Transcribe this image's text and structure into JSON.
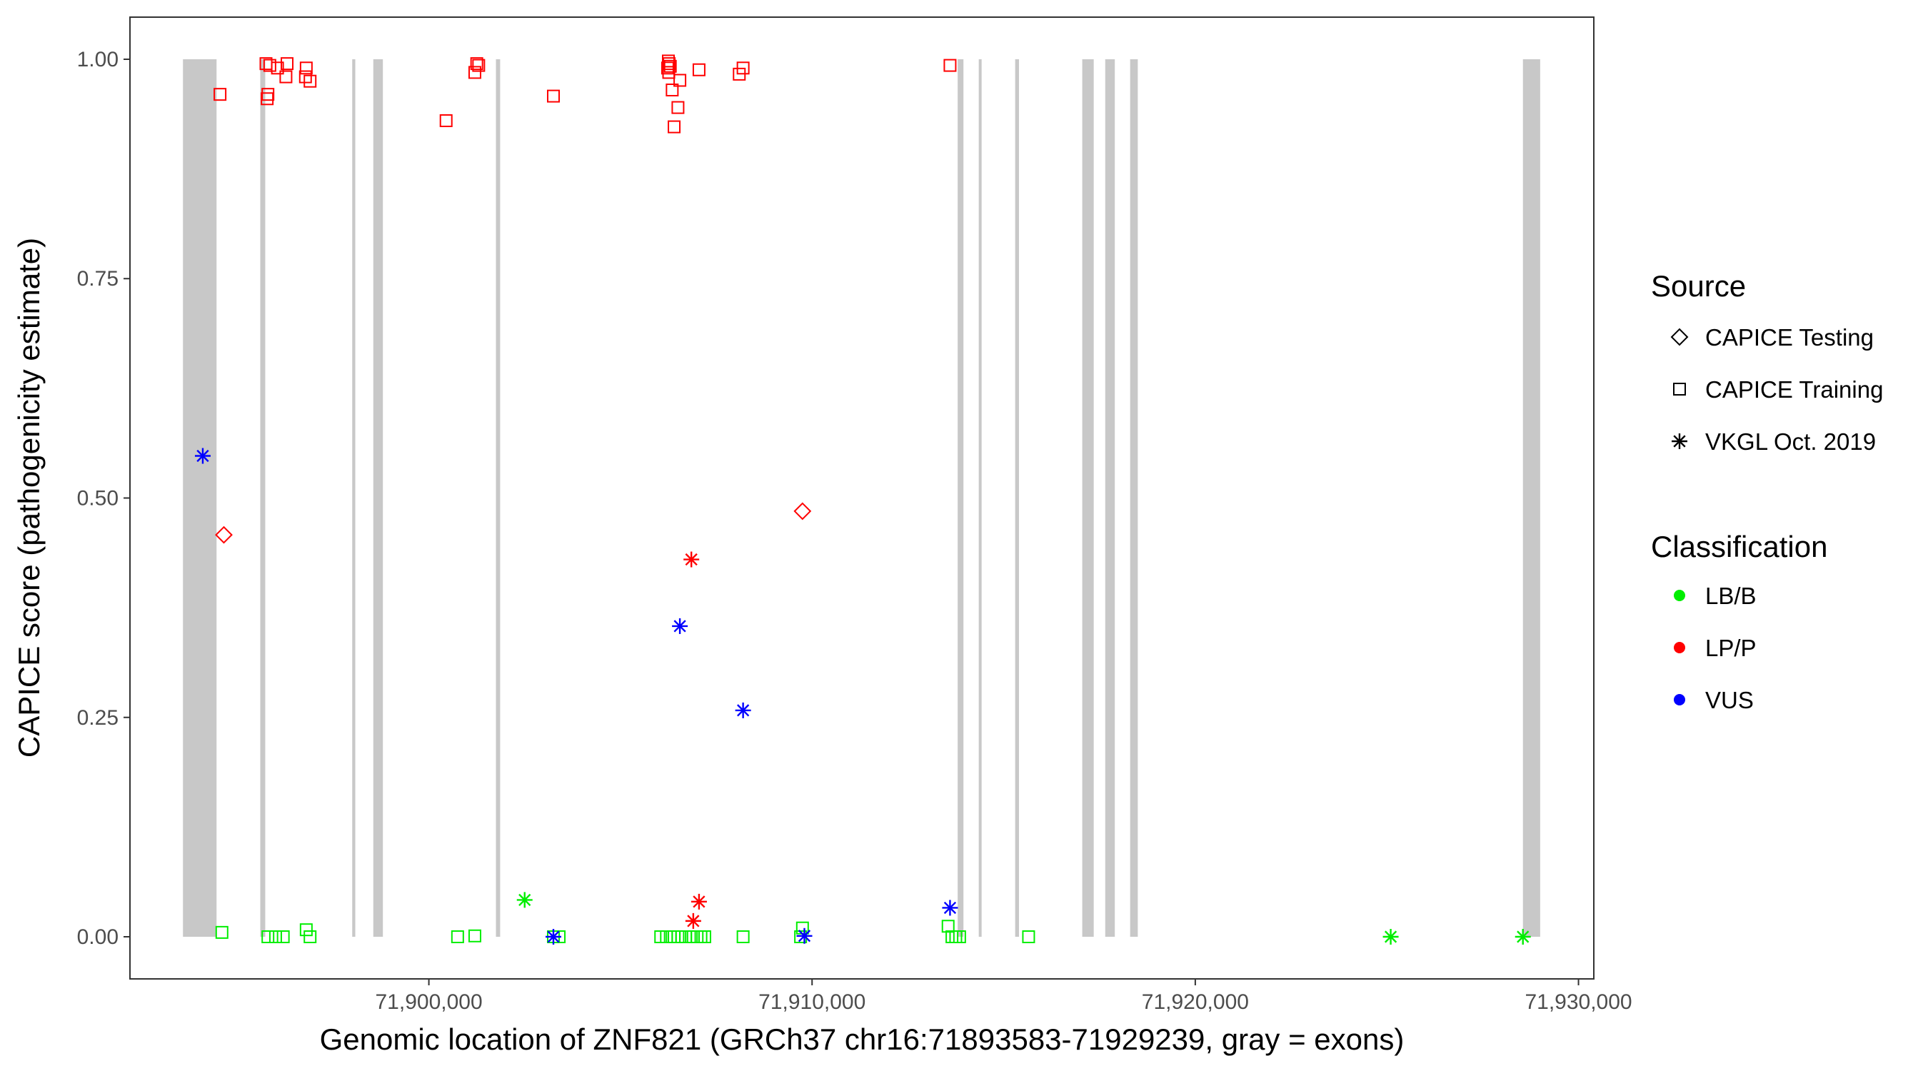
{
  "chart_data": {
    "type": "scatter",
    "title": "",
    "xlabel": "Genomic location of ZNF821 (GRCh37 chr16:71893583-71929239, gray = exons)",
    "ylabel": "CAPICE score (pathogenicity estimate)",
    "xlim": [
      71892200,
      71930400
    ],
    "ylim": [
      -0.048,
      1.048
    ],
    "x_ticks": [
      71900000,
      71910000,
      71920000,
      71930000
    ],
    "x_tick_labels": [
      "71,900,000",
      "71,910,000",
      "71,920,000",
      "71,930,000"
    ],
    "y_ticks": [
      0,
      0.25,
      0.5,
      0.75,
      1.0
    ],
    "y_tick_labels": [
      "0.00",
      "0.25",
      "0.50",
      "0.75",
      "1.00"
    ],
    "grid": false,
    "exon_color": "#c8c8c8",
    "exons": [
      [
        71893583,
        71894460
      ],
      [
        71895600,
        71895730
      ],
      [
        71898000,
        71898080
      ],
      [
        71898550,
        71898800
      ],
      [
        71901750,
        71901860
      ],
      [
        71913800,
        71913950
      ],
      [
        71914350,
        71914420
      ],
      [
        71915300,
        71915400
      ],
      [
        71917050,
        71917350
      ],
      [
        71917650,
        71917900
      ],
      [
        71918300,
        71918500
      ],
      [
        71928550,
        71929000
      ]
    ],
    "legend": {
      "placement": "right",
      "source_title": "Source",
      "source_entries": [
        {
          "label": "CAPICE Testing",
          "shape": "diamond"
        },
        {
          "label": "CAPICE Training",
          "shape": "square"
        },
        {
          "label": "VKGL Oct. 2019",
          "shape": "asterisk"
        }
      ],
      "class_title": "Classification",
      "class_entries": [
        {
          "label": "LB/B",
          "color": "#00ee00"
        },
        {
          "label": "LP/P",
          "color": "#ff0000"
        },
        {
          "label": "VUS",
          "color": "#0000ff"
        }
      ]
    },
    "series": [
      {
        "source": "CAPICE Training",
        "classification": "LP/P",
        "points": [
          [
            71894550,
            0.96
          ],
          [
            71895750,
            0.995
          ],
          [
            71895850,
            0.993
          ],
          [
            71895800,
            0.96
          ],
          [
            71895780,
            0.955
          ],
          [
            71896050,
            0.99
          ],
          [
            71896300,
            0.995
          ],
          [
            71896270,
            0.98
          ],
          [
            71896800,
            0.99
          ],
          [
            71896780,
            0.98
          ],
          [
            71896900,
            0.975
          ],
          [
            71900450,
            0.93
          ],
          [
            71901250,
            0.995
          ],
          [
            71901300,
            0.993
          ],
          [
            71901200,
            0.985
          ],
          [
            71903250,
            0.958
          ],
          [
            71906250,
            0.998
          ],
          [
            71906270,
            0.995
          ],
          [
            71906230,
            0.99
          ],
          [
            71906260,
            0.985
          ],
          [
            71906300,
            0.992
          ],
          [
            71906350,
            0.965
          ],
          [
            71906550,
            0.976
          ],
          [
            71906500,
            0.945
          ],
          [
            71906400,
            0.923
          ],
          [
            71907050,
            0.988
          ],
          [
            71908200,
            0.99
          ],
          [
            71908100,
            0.983
          ],
          [
            71913600,
            0.993
          ]
        ]
      },
      {
        "source": "CAPICE Training",
        "classification": "LB/B",
        "points": [
          [
            71894600,
            0.005
          ],
          [
            71895800,
            0.0
          ],
          [
            71896000,
            0.0
          ],
          [
            71896200,
            0.0
          ],
          [
            71896800,
            0.008
          ],
          [
            71896900,
            0.0
          ],
          [
            71900750,
            0.0
          ],
          [
            71901200,
            0.001
          ],
          [
            71903250,
            0.0
          ],
          [
            71903400,
            0.0
          ],
          [
            71906050,
            0.0
          ],
          [
            71906200,
            0.0
          ],
          [
            71906300,
            0.0
          ],
          [
            71906400,
            0.0
          ],
          [
            71906500,
            0.0
          ],
          [
            71906600,
            0.0
          ],
          [
            71906700,
            0.0
          ],
          [
            71906850,
            0.0
          ],
          [
            71907000,
            0.0
          ],
          [
            71907100,
            0.0
          ],
          [
            71907200,
            0.0
          ],
          [
            71908200,
            0.0
          ],
          [
            71909750,
            0.01
          ],
          [
            71909700,
            0.0
          ],
          [
            71913550,
            0.012
          ],
          [
            71913650,
            0.0
          ],
          [
            71913750,
            0.0
          ],
          [
            71913850,
            0.0
          ],
          [
            71915650,
            0.0
          ]
        ]
      },
      {
        "source": "CAPICE Testing",
        "classification": "LP/P",
        "points": [
          [
            71894650,
            0.458
          ],
          [
            71909750,
            0.485
          ]
        ]
      },
      {
        "source": "VKGL Oct. 2019",
        "classification": "VUS",
        "points": [
          [
            71894100,
            0.548
          ],
          [
            71906550,
            0.354
          ],
          [
            71908200,
            0.258
          ],
          [
            71903250,
            0.0
          ],
          [
            71909800,
            0.001
          ],
          [
            71913600,
            0.033
          ]
        ]
      },
      {
        "source": "VKGL Oct. 2019",
        "classification": "LP/P",
        "points": [
          [
            71906850,
            0.43
          ],
          [
            71907050,
            0.04
          ],
          [
            71906900,
            0.018
          ]
        ]
      },
      {
        "source": "VKGL Oct. 2019",
        "classification": "LB/B",
        "points": [
          [
            71902500,
            0.042
          ],
          [
            71925100,
            0.0
          ],
          [
            71928550,
            0.0
          ]
        ]
      }
    ]
  }
}
